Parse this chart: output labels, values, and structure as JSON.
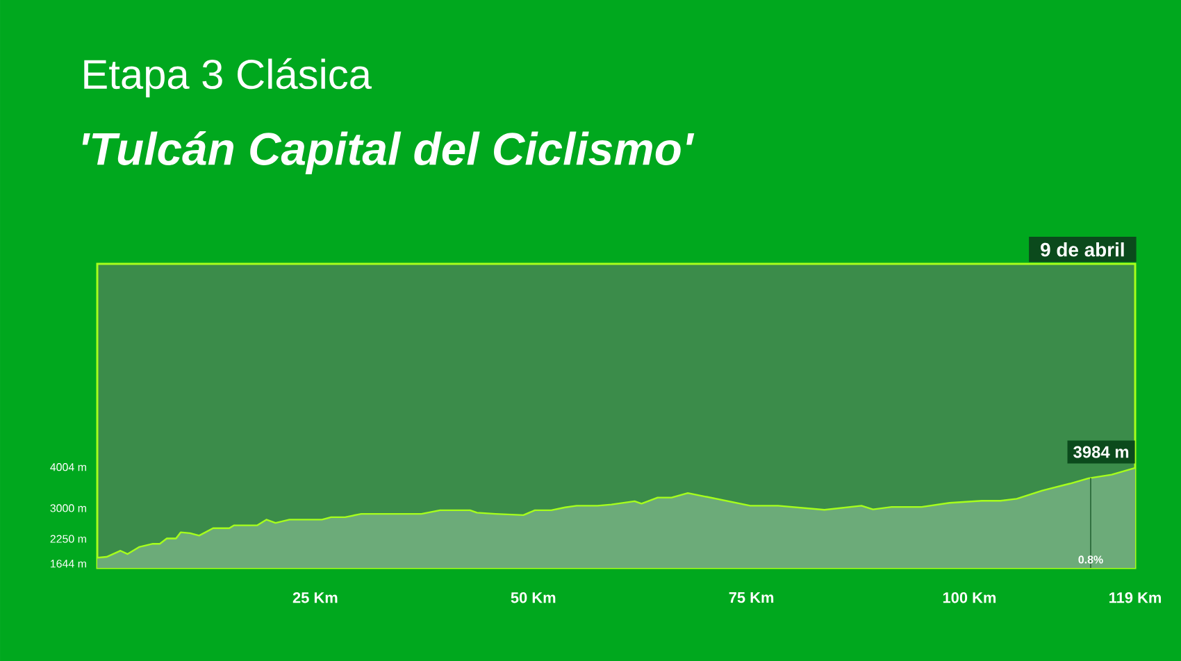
{
  "chart_data": {
    "type": "area",
    "title": "Etapa 3 Clásica",
    "subtitle": "'Tulcán Capital del Ciclismo'",
    "x": [
      0,
      1.07,
      2.66,
      3.46,
      4.78,
      6.37,
      7.17,
      7.97,
      9.03,
      9.56,
      10.63,
      11.68,
      13.27,
      15.13,
      15.66,
      18.32,
      19.39,
      20.44,
      22.03,
      25.76,
      26.81,
      28.41,
      30.27,
      37.17,
      39.3,
      42.74,
      43.54,
      45.67,
      48.86,
      50.18,
      52.05,
      53.64,
      54.96,
      57.35,
      58.95,
      61.61,
      62.4,
      64.25,
      65.84,
      67.71,
      69.57,
      74.88,
      78.06,
      83.37,
      87.62,
      88.94,
      91.08,
      94.52,
      97.71,
      101.43,
      103.55,
      105.42,
      108.33,
      111.52,
      113.64,
      116.3,
      119
    ],
    "values": [
      1790,
      1810,
      1960,
      1880,
      2050,
      2130,
      2130,
      2260,
      2260,
      2410,
      2390,
      2330,
      2510,
      2510,
      2580,
      2580,
      2720,
      2640,
      2720,
      2720,
      2780,
      2780,
      2860,
      2860,
      2950,
      2950,
      2890,
      2860,
      2830,
      2950,
      2950,
      3020,
      3060,
      3060,
      3090,
      3170,
      3110,
      3260,
      3260,
      3370,
      3290,
      3060,
      3060,
      2960,
      3060,
      2970,
      3030,
      3030,
      3130,
      3180,
      3180,
      3230,
      3430,
      3600,
      3730,
      3820,
      3984
    ],
    "color": "#a6ff1c",
    "xlim": [
      0,
      119
    ],
    "ylim": [
      1540,
      8970
    ],
    "xticks": [
      {
        "value": 25,
        "label": "25 Km"
      },
      {
        "value": 50,
        "label": "50 Km"
      },
      {
        "value": 75,
        "label": "75 Km"
      },
      {
        "value": 100,
        "label": "100 Km"
      },
      {
        "value": 119,
        "label": "119 Km"
      }
    ],
    "yticks": [
      {
        "value": 1644,
        "label": "1644 m"
      },
      {
        "value": 2250,
        "label": "2250 m"
      },
      {
        "value": 3000,
        "label": "3000 m"
      },
      {
        "value": 4004,
        "label": "4004 m"
      }
    ],
    "marker": "none",
    "line_style": "solid",
    "grid": false,
    "annotations": [
      "9 de abril",
      {
        "text": "3984 m",
        "x": 119,
        "y": 3984
      },
      {
        "text": "0.8%",
        "x": 113.9,
        "y": 3740
      }
    ]
  }
}
